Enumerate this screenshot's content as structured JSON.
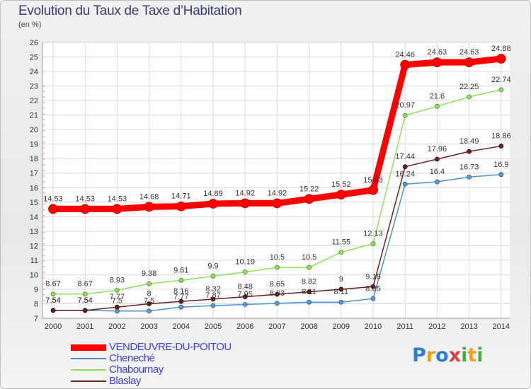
{
  "chart_data": {
    "type": "line",
    "title": "Evolution du Taux de Taxe d’Habitation",
    "subtitle": "(en %)",
    "x": [
      "2000",
      "2001",
      "2002",
      "2003",
      "2004",
      "2005",
      "2006",
      "2007",
      "2008",
      "2009",
      "2010",
      "2011",
      "2012",
      "2013",
      "2014"
    ],
    "ylim": [
      7,
      26
    ],
    "yticks": [
      7,
      8,
      9,
      10,
      11,
      12,
      13,
      14,
      15,
      16,
      17,
      18,
      19,
      20,
      21,
      22,
      23,
      24,
      25,
      26
    ],
    "grid": true,
    "legend_position": "bottom-left",
    "series": [
      {
        "name": "VENDEUVRE-DU-POITOU",
        "color": "#ff0000",
        "values": [
          14.53,
          14.53,
          14.53,
          14.68,
          14.71,
          14.89,
          14.92,
          14.92,
          15.22,
          15.52,
          15.83,
          24.46,
          24.63,
          24.63,
          24.88
        ],
        "labels": [
          "14.53",
          "14.53",
          "14.53",
          "14.68",
          "14.71",
          "14.89",
          "14.92",
          "14.92",
          "15.22",
          "15.52",
          "15.83",
          "24.46",
          "24.63",
          "24.63",
          "24.88"
        ]
      },
      {
        "name": "Cheneché",
        "color": "#4a8fd0",
        "values": [
          7.54,
          7.54,
          7.5,
          7.5,
          7.77,
          7.87,
          7.95,
          8.03,
          8.11,
          8.11,
          8.35,
          16.24,
          16.4,
          16.73,
          16.9
        ],
        "labels": [
          "7.54",
          "7.54",
          "7.5",
          "7.5",
          "7.77",
          "7.87",
          "7.95",
          "8.03",
          "8.11",
          "8.11",
          "8.35",
          "16.24",
          "16.4",
          "16.73",
          "16.9"
        ]
      },
      {
        "name": "Chabournay",
        "color": "#8fe05a",
        "values": [
          8.67,
          8.67,
          8.93,
          9.38,
          9.61,
          9.9,
          10.19,
          10.5,
          10.5,
          11.55,
          12.13,
          20.97,
          21.6,
          22.25,
          22.74
        ],
        "labels": [
          "8.67",
          "8.67",
          "8.93",
          "9.38",
          "9.61",
          "9.9",
          "10.19",
          "10.5",
          "10.5",
          "11.55",
          "12.13",
          "20.97",
          "21.6",
          "22.25",
          "22.74"
        ]
      },
      {
        "name": "Blaslay",
        "color": "#6b1f1f",
        "values": [
          7.54,
          7.54,
          7.77,
          8,
          8.16,
          8.32,
          8.48,
          8.65,
          8.82,
          9,
          9.18,
          17.44,
          17.96,
          18.49,
          18.86
        ],
        "labels": [
          "7.54",
          "7.54",
          "7.77",
          "8",
          "8.16",
          "8.32",
          "8.48",
          "8.65",
          "8.82",
          "9",
          "9.18",
          "17.44",
          "17.96",
          "18.49",
          "18.86"
        ]
      }
    ]
  },
  "logo": {
    "text": "Proxiti",
    "letters": [
      "P",
      "r",
      "o",
      "x",
      "i",
      "t",
      "i"
    ],
    "colors": [
      "#2a7fd4",
      "#f0a020",
      "#2a7fd4",
      "#e04040",
      "#40b040",
      "#f0a020",
      "#40b040"
    ]
  }
}
